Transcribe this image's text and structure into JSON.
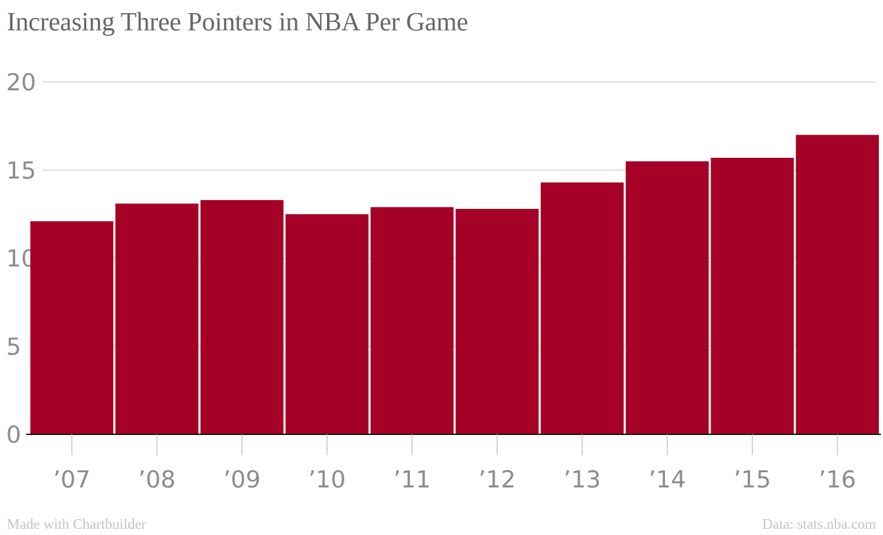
{
  "chart_data": {
    "type": "bar",
    "title": "Increasing Three Pointers in NBA Per Game",
    "categories": [
      "’07",
      "’08",
      "’09",
      "’10",
      "’11",
      "’12",
      "’13",
      "’14",
      "’15",
      "’16"
    ],
    "values": [
      12.1,
      13.1,
      13.3,
      12.5,
      12.9,
      12.8,
      14.3,
      15.5,
      15.7,
      17.0
    ],
    "y_ticks": [
      0,
      5,
      10,
      15,
      20
    ],
    "ylim": [
      0,
      20
    ],
    "xlabel": "",
    "ylabel": "",
    "grid": true,
    "bar_color": "#a50026"
  },
  "footer": {
    "credit": "Made with Chartbuilder",
    "source": "Data: stats.nba.com"
  }
}
